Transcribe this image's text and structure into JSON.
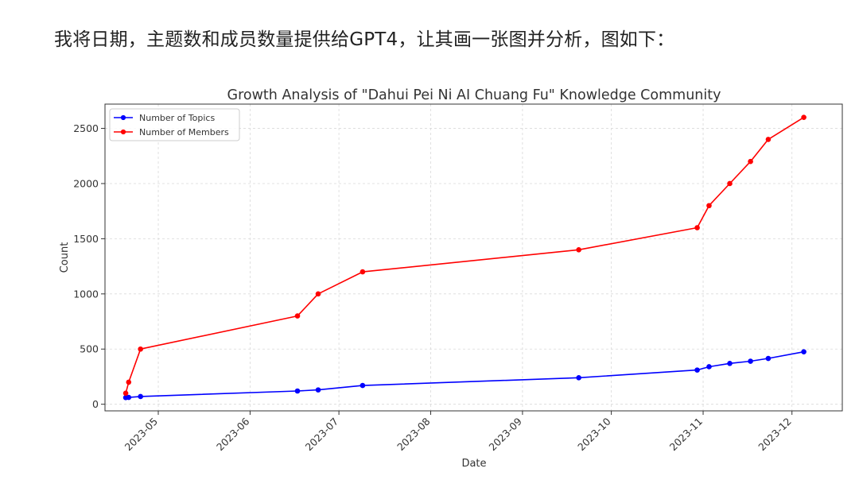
{
  "caption": "我将日期，主题数和成员数量提供给GPT4，让其画一张图并分析，图如下：",
  "chart_data": {
    "type": "line",
    "title": "Growth Analysis of \"Dahui Pei Ni AI Chuang Fu\" Knowledge Community",
    "xlabel": "Date",
    "ylabel": "Count",
    "x_type": "date",
    "xlim": [
      "2023-04-13",
      "2023-12-18"
    ],
    "ylim": [
      -60,
      2720
    ],
    "x_ticks": [
      "2023-05-01",
      "2023-06-01",
      "2023-07-01",
      "2023-08-01",
      "2023-09-01",
      "2023-10-01",
      "2023-11-01",
      "2023-12-01"
    ],
    "x_tick_labels": [
      "2023-05",
      "2023-06",
      "2023-07",
      "2023-08",
      "2023-09",
      "2023-10",
      "2023-11",
      "2023-12"
    ],
    "y_ticks": [
      0,
      500,
      1000,
      1500,
      2000,
      2500
    ],
    "grid": true,
    "legend_position": "top-left",
    "series": [
      {
        "name": "Number of Topics",
        "color": "#0000ff",
        "x": [
          "2023-04-20",
          "2023-04-21",
          "2023-04-25",
          "2023-06-17",
          "2023-06-24",
          "2023-07-09",
          "2023-09-20",
          "2023-10-30",
          "2023-11-03",
          "2023-11-10",
          "2023-11-17",
          "2023-11-23",
          "2023-12-05"
        ],
        "values": [
          60,
          62,
          70,
          120,
          130,
          170,
          240,
          310,
          340,
          370,
          390,
          415,
          475
        ]
      },
      {
        "name": "Number of Members",
        "color": "#ff0000",
        "x": [
          "2023-04-20",
          "2023-04-21",
          "2023-04-25",
          "2023-06-17",
          "2023-06-24",
          "2023-07-09",
          "2023-09-20",
          "2023-10-30",
          "2023-11-03",
          "2023-11-10",
          "2023-11-17",
          "2023-11-23",
          "2023-12-05"
        ],
        "values": [
          100,
          200,
          500,
          800,
          1000,
          1200,
          1400,
          1600,
          1800,
          2000,
          2200,
          2400,
          2600
        ]
      }
    ]
  }
}
